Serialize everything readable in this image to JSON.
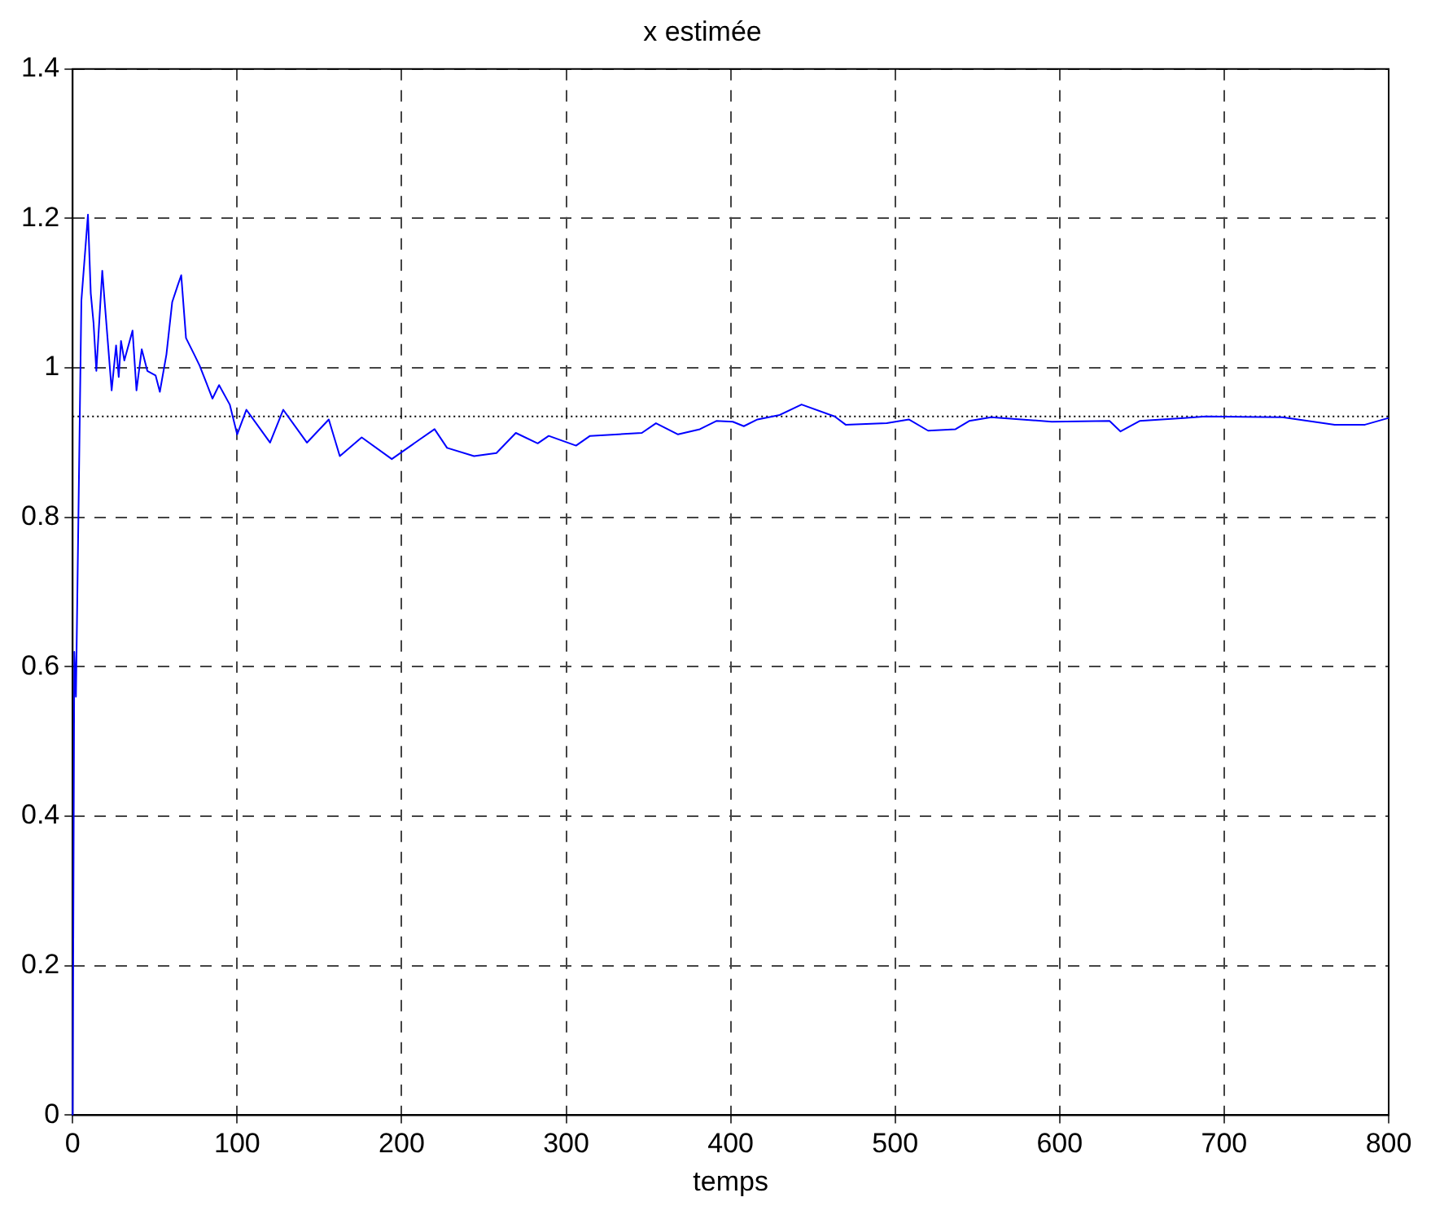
{
  "chart_data": {
    "type": "line",
    "title": "x estimée",
    "xlabel": "temps",
    "xlim": [
      0,
      800
    ],
    "xticks": [
      0,
      100,
      200,
      300,
      400,
      500,
      600,
      700,
      800
    ],
    "ylim": [
      0,
      1.4
    ],
    "yticks": [
      0,
      0.2,
      0.4,
      0.6,
      0.8,
      1,
      1.2,
      1.4
    ],
    "grid": true,
    "legend": false,
    "marker": "none",
    "line_style": "solid",
    "ref_lines": [
      {
        "axis": "y",
        "value": 0.935,
        "color": "#000000",
        "line_style": "dotted"
      }
    ],
    "series": [
      {
        "color": "#0000ff",
        "x": [
          0,
          1,
          2,
          5.3,
          9.3,
          11,
          12.7,
          14.4,
          18,
          19.4,
          23.7,
          26.4,
          28,
          29.4,
          31.4,
          36.4,
          38.8,
          42,
          45.4,
          50.4,
          53,
          57,
          60.5,
          63.8,
          66,
          68.9,
          73.9,
          77.2,
          85,
          89,
          95.5,
          100,
          105.6,
          120,
          128,
          142.4,
          155.7,
          162.4,
          175.7,
          194,
          210.8,
          220,
          227.6,
          244,
          257.6,
          269.4,
          282.7,
          289.4,
          306,
          314.5,
          346,
          354.6,
          368,
          381.3,
          391.3,
          401.3,
          408,
          416.3,
          429.8,
          443.1,
          463.2,
          469.9,
          494.9,
          508.3,
          520,
          536.7,
          545,
          558.4,
          595.2,
          630.3,
          637,
          648.6,
          675.4,
          688.7,
          735.5,
          767.2,
          785.6,
          800
        ],
        "values": [
          0,
          0.62,
          0.56,
          1.09,
          1.205,
          1.1,
          1.06,
          0.996,
          1.13,
          1.09,
          0.97,
          1.03,
          0.988,
          1.036,
          1.01,
          1.05,
          0.97,
          1.025,
          0.996,
          0.99,
          0.968,
          1.018,
          1.088,
          1.11,
          1.124,
          1.04,
          1.018,
          1.003,
          0.959,
          0.977,
          0.951,
          0.911,
          0.944,
          0.9,
          0.944,
          0.9,
          0.931,
          0.882,
          0.907,
          0.878,
          0.904,
          0.918,
          0.893,
          0.882,
          0.886,
          0.913,
          0.899,
          0.909,
          0.896,
          0.909,
          0.913,
          0.926,
          0.911,
          0.918,
          0.929,
          0.928,
          0.922,
          0.931,
          0.937,
          0.951,
          0.935,
          0.924,
          0.926,
          0.931,
          0.916,
          0.918,
          0.929,
          0.934,
          0.928,
          0.929,
          0.915,
          0.929,
          0.933,
          0.935,
          0.934,
          0.924,
          0.924,
          0.933
        ]
      }
    ]
  }
}
